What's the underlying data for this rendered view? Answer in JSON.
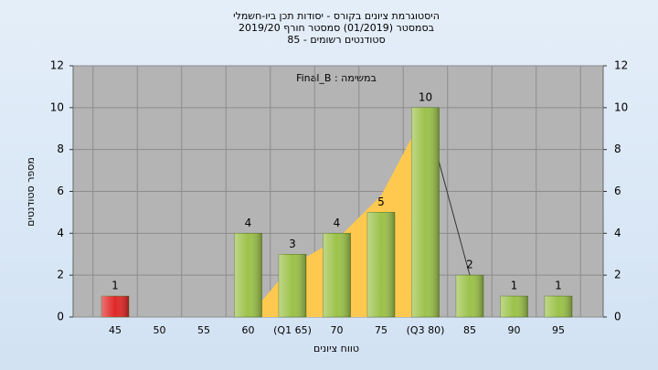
{
  "chart_data": {
    "type": "bar",
    "title": [
      "היסטוגרמת ציונים בקורס - יסודות תכן ביו-חשמלי",
      "בסמסטר (01/2019) סמסטר חורף 2019/20",
      "סטודנטים רשומים - 85"
    ],
    "annotation": "במשימה : Final_B",
    "x_label": "טווח ציונים",
    "y_label": "מספר סטודנטים",
    "categories": [
      "45",
      "50",
      "55",
      "60",
      "(Q1 65)",
      "70",
      "75",
      "(Q3 80)",
      "85",
      "90",
      "95"
    ],
    "values": [
      1,
      0,
      0,
      4,
      3,
      4,
      5,
      10,
      2,
      1,
      1
    ],
    "colors": [
      "#e02828",
      "#9cc24a",
      "#9cc24a",
      "#9cc24a",
      "#9cc24a",
      "#9cc24a",
      "#9cc24a",
      "#9cc24a",
      "#9cc24a",
      "#9cc24a",
      "#9cc24a"
    ],
    "overlay": {
      "color": "#ffc94f",
      "values": [
        null,
        null,
        null,
        0,
        2.5,
        3.7,
        5.8,
        9.8,
        2,
        null,
        null
      ]
    },
    "ylim": [
      0,
      12
    ],
    "yticks": [
      0,
      2,
      4,
      6,
      8,
      10,
      12
    ],
    "grid": true
  }
}
